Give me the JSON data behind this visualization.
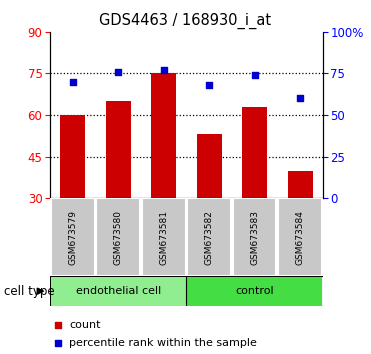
{
  "title": "GDS4463 / 168930_i_at",
  "samples": [
    "GSM673579",
    "GSM673580",
    "GSM673581",
    "GSM673582",
    "GSM673583",
    "GSM673584"
  ],
  "counts": [
    60,
    65,
    75,
    53,
    63,
    40
  ],
  "percentile_ranks": [
    70,
    76,
    77,
    68,
    74,
    60
  ],
  "bar_color": "#CC0000",
  "dot_color": "#0000CC",
  "left_yticks": [
    30,
    45,
    60,
    75,
    90
  ],
  "right_yticks": [
    0,
    25,
    50,
    75,
    100
  ],
  "right_yticklabels": [
    "0",
    "25",
    "50",
    "75",
    "100%"
  ],
  "ylim_left": [
    30,
    90
  ],
  "ylim_right": [
    0,
    100
  ],
  "grid_lines": [
    45,
    60,
    75
  ],
  "legend_count_label": "count",
  "legend_pct_label": "percentile rank within the sample",
  "cell_type_label": "cell type",
  "endothelial_color": "#90EE90",
  "control_color": "#44DD44",
  "group_border_color": "#008800"
}
